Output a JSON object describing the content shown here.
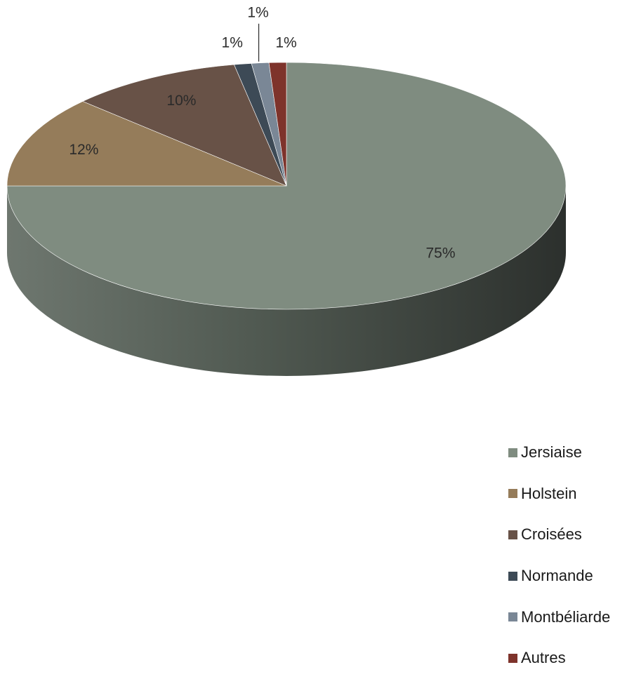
{
  "chart_data": {
    "type": "pie",
    "title": "",
    "three_d": true,
    "legend_position": "bottom-right",
    "slices": [
      {
        "label": "Jersiaise",
        "value": 75,
        "display": "75%",
        "color": "#7f8c80",
        "side_color": "#5d665e"
      },
      {
        "label": "Holstein",
        "value": 12,
        "display": "12%",
        "color": "#957c5a",
        "side_color": "#6b5a40"
      },
      {
        "label": "Croisées",
        "value": 10,
        "display": "10%",
        "color": "#685247",
        "side_color": "#4a3a32"
      },
      {
        "label": "Normande",
        "value": 1,
        "display": "1%",
        "color": "#3d4a56",
        "side_color": "#2b343c"
      },
      {
        "label": "Montbéliarde",
        "value": 1,
        "display": "1%",
        "color": "#7a8796",
        "side_color": "#58626d"
      },
      {
        "label": "Autres",
        "value": 1,
        "display": "1%",
        "color": "#7e332b",
        "side_color": "#5a241f"
      }
    ]
  }
}
